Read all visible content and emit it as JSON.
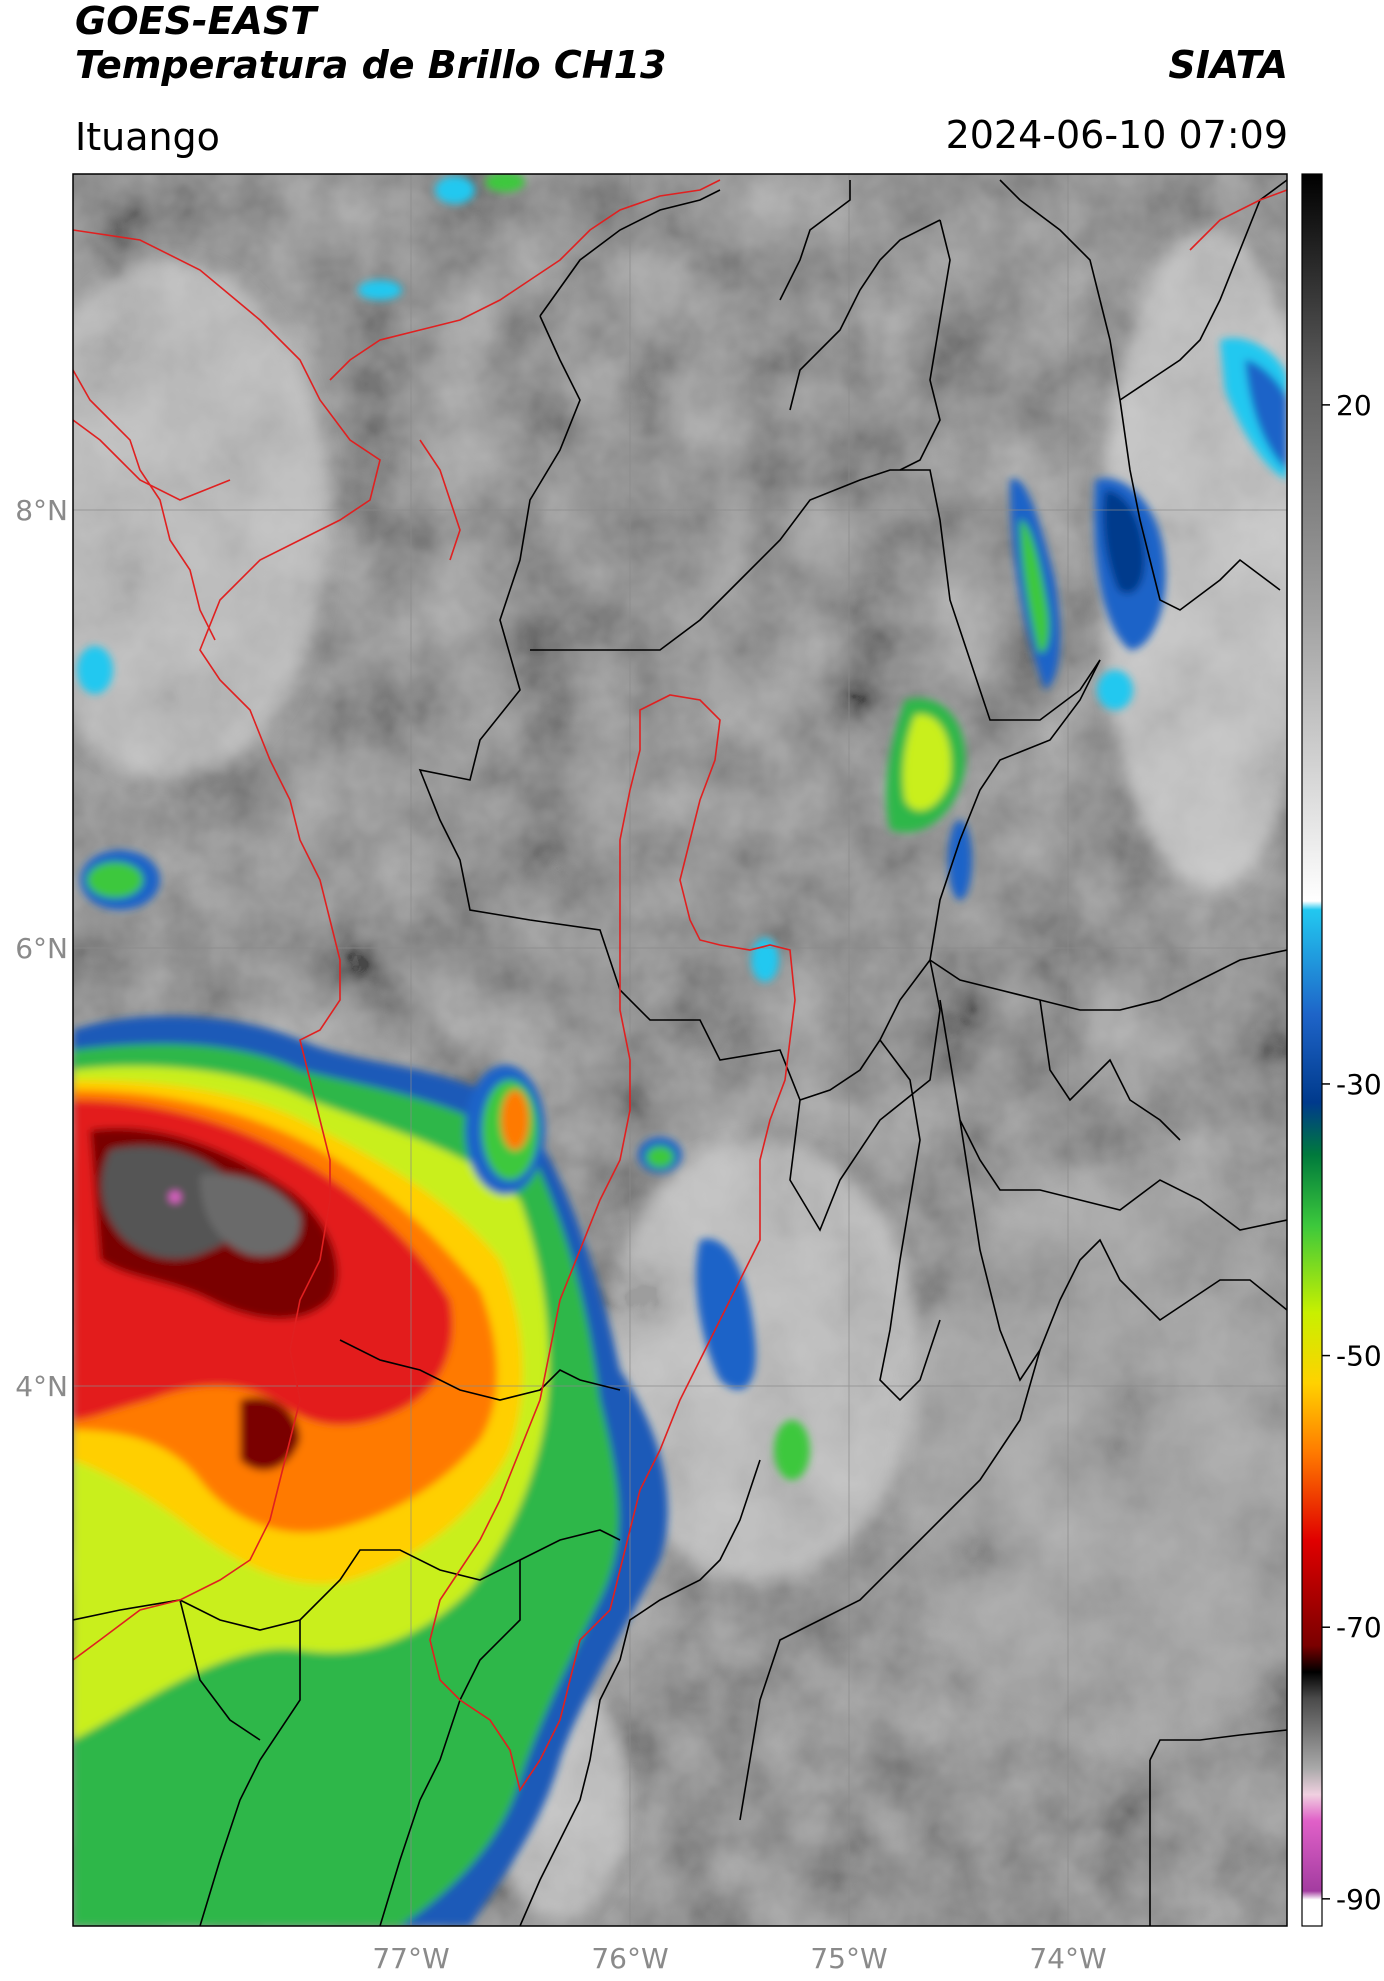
{
  "header": {
    "satellite": "GOES-EAST",
    "product": "Temperatura de Brillo CH13",
    "org": "SIATA",
    "location": "Ituango",
    "datetime": "2024-06-10 07:09"
  },
  "map": {
    "lon_ticks": [
      "77°W",
      "76°W",
      "75°W",
      "74°W"
    ],
    "lat_ticks": [
      "8°N",
      "6°N",
      "4°N"
    ],
    "lon_range": [
      -78.55,
      -73.0
    ],
    "lat_range": [
      2.4,
      9.55
    ]
  },
  "colorbar": {
    "ticks": [
      "20",
      "-30",
      "-50",
      "-70",
      "-90"
    ],
    "tick_values": [
      20,
      -30,
      -50,
      -70,
      -90
    ],
    "range": [
      -92,
      37
    ],
    "palette": [
      "#ffffff",
      "#a33ca0",
      "#e060c8",
      "#f0d0e0",
      "#a9a9a9",
      "#000000",
      "#7a0000",
      "#e00000",
      "#ff7a00",
      "#ffd200",
      "#c8f000",
      "#3cc83c",
      "#007a3c",
      "#003a8c",
      "#1e64c8",
      "#22c8f0",
      "#ffffff",
      "#808080",
      "#000000"
    ]
  },
  "colors": {
    "border_country": "#e02020",
    "border_dept": "#000000",
    "gridline": "#8a8a8a"
  }
}
